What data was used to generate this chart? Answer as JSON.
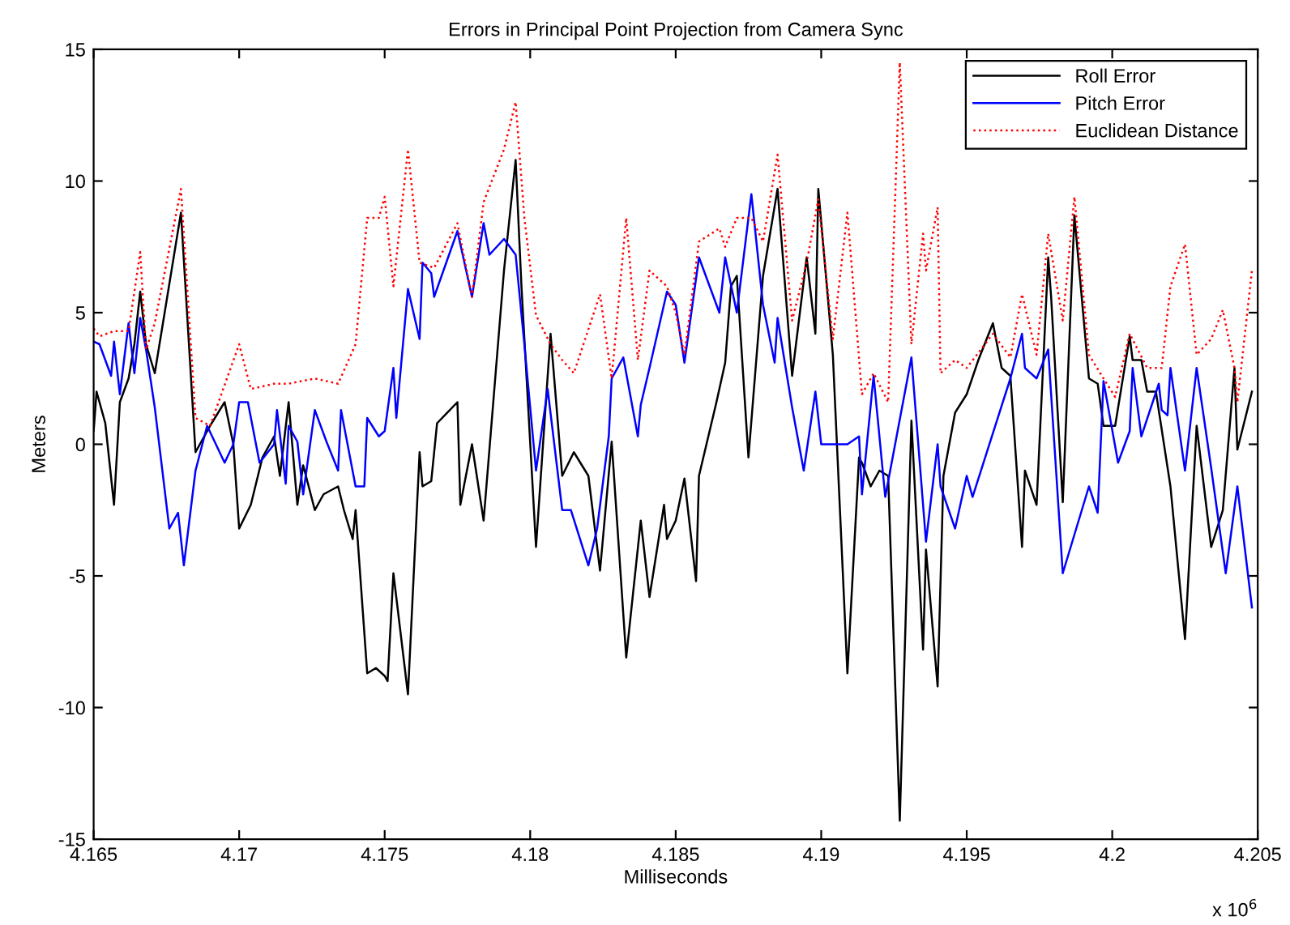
{
  "chart_data": {
    "type": "line",
    "title": "Errors in Principal Point Projection from Camera Sync",
    "xlabel": "Milliseconds",
    "ylabel": "Meters",
    "annotations": [
      "x 10$^{6}$"
    ],
    "xlim": [
      4.165,
      4.205
    ],
    "xticks": [
      4.165,
      4.17,
      4.175,
      4.18,
      4.185,
      4.19,
      4.195,
      4.2,
      4.205
    ],
    "ylim": [
      -15,
      15
    ],
    "yticks": [
      -15,
      -10,
      -5,
      0,
      5,
      10,
      15
    ],
    "grid": false,
    "legend": "top right",
    "marker": "none",
    "series": [
      {
        "name": "Roll Error",
        "color": "#000000",
        "line_style": "solid",
        "x": [
          4.165,
          4.1651,
          4.1654,
          4.1657,
          4.1659,
          4.1662,
          4.1664,
          4.1666,
          4.1668,
          4.1671,
          4.168,
          4.1685,
          4.169,
          4.1695,
          4.1698,
          4.17,
          4.1704,
          4.1708,
          4.1712,
          4.1714,
          4.1717,
          4.172,
          4.1722,
          4.1726,
          4.1729,
          4.1734,
          4.1736,
          4.1739,
          4.174,
          4.1744,
          4.1747,
          4.175,
          4.1751,
          4.1753,
          4.1758,
          4.1762,
          4.1763,
          4.1766,
          4.1768,
          4.1775,
          4.1776,
          4.178,
          4.1784,
          4.1791,
          4.1795,
          4.1797,
          4.1802,
          4.1807,
          4.1811,
          4.1815,
          4.182,
          4.1824,
          4.1828,
          4.1833,
          4.1838,
          4.1841,
          4.1846,
          4.1847,
          4.185,
          4.1853,
          4.1857,
          4.1858,
          4.1864,
          4.1867,
          4.1869,
          4.1871,
          4.1875,
          4.188,
          4.1885,
          4.189,
          4.1895,
          4.1898,
          4.1899,
          4.1904,
          4.1909,
          4.1913,
          4.1914,
          4.1917,
          4.192,
          4.1923,
          4.1927,
          4.1931,
          4.1935,
          4.1936,
          4.194,
          4.1942,
          4.1946,
          4.195,
          4.1954,
          4.1959,
          4.1962,
          4.1965,
          4.1969,
          4.197,
          4.1974,
          4.1978,
          4.1979,
          4.1983,
          4.1987,
          4.1992,
          4.1995,
          4.1997,
          4.2001,
          4.2006,
          4.2007,
          4.201,
          4.2012,
          4.2015,
          4.202,
          4.2025,
          4.2029,
          4.2034,
          4.2038,
          4.2042,
          4.2043,
          4.2048
        ],
        "values": [
          0.5,
          2.0,
          0.8,
          -2.3,
          1.6,
          2.5,
          3.8,
          5.8,
          3.8,
          2.7,
          8.8,
          -0.3,
          0.7,
          1.6,
          0,
          -3.2,
          -2.3,
          -0.5,
          0.3,
          -1.2,
          1.6,
          -2.3,
          -0.8,
          -2.5,
          -1.9,
          -1.6,
          -2.5,
          -3.6,
          -2.5,
          -8.7,
          -8.5,
          -8.8,
          -9.0,
          -4.9,
          -9.5,
          -0.3,
          -1.6,
          -1.4,
          0.8,
          1.6,
          -2.3,
          0,
          -2.9,
          6.6,
          10.8,
          6.0,
          -3.9,
          4.2,
          -1.2,
          -0.3,
          -1.2,
          -4.8,
          0.1,
          -8.1,
          -2.9,
          -5.8,
          -2.3,
          -3.6,
          -2.9,
          -1.3,
          -5.2,
          -1.2,
          1.6,
          3.1,
          6.0,
          6.4,
          -0.5,
          6.4,
          9.7,
          2.6,
          7.1,
          4.2,
          9.7,
          3.4,
          -8.7,
          -0.5,
          -0.7,
          -1.6,
          -1.0,
          -1.2,
          -14.3,
          0.9,
          -7.8,
          -4.0,
          -9.2,
          -1.2,
          1.2,
          1.9,
          3.2,
          4.6,
          2.9,
          2.6,
          -3.9,
          -1.0,
          -2.3,
          7.1,
          5.6,
          -2.2,
          8.7,
          2.5,
          2.3,
          0.7,
          0.7,
          4.1,
          3.2,
          3.2,
          2.0,
          2.0,
          -1.6,
          -7.4,
          0.7,
          -3.9,
          -2.5,
          2.9,
          -0.2,
          2.0
        ]
      },
      {
        "name": "Pitch Error",
        "color": "#0000ff",
        "line_style": "solid",
        "x": [
          4.165,
          4.1652,
          4.1656,
          4.1657,
          4.1659,
          4.1662,
          4.1664,
          4.1666,
          4.1668,
          4.1671,
          4.1676,
          4.1679,
          4.1681,
          4.1685,
          4.1689,
          4.1695,
          4.1698,
          4.17,
          4.1703,
          4.1707,
          4.1712,
          4.1713,
          4.1716,
          4.1717,
          4.172,
          4.1722,
          4.1726,
          4.173,
          4.1734,
          4.1735,
          4.174,
          4.1743,
          4.1744,
          4.1748,
          4.175,
          4.1753,
          4.1754,
          4.1758,
          4.1762,
          4.1763,
          4.1766,
          4.1767,
          4.1775,
          4.178,
          4.1784,
          4.1786,
          4.1791,
          4.1795,
          4.1798,
          4.1802,
          4.1806,
          4.1811,
          4.1814,
          4.182,
          4.1823,
          4.1827,
          4.1828,
          4.1832,
          4.1837,
          4.1838,
          4.1841,
          4.1847,
          4.185,
          4.1853,
          4.1858,
          4.1865,
          4.1867,
          4.1871,
          4.1876,
          4.188,
          4.1884,
          4.1885,
          4.189,
          4.1894,
          4.1898,
          4.19,
          4.1909,
          4.1913,
          4.1914,
          4.1918,
          4.1922,
          4.1931,
          4.1936,
          4.194,
          4.1941,
          4.1946,
          4.195,
          4.1952,
          4.1965,
          4.1969,
          4.197,
          4.1974,
          4.1978,
          4.1983,
          4.1992,
          4.1995,
          4.1997,
          4.2002,
          4.2006,
          4.2007,
          4.201,
          4.2016,
          4.2017,
          4.2019,
          4.202,
          4.2025,
          4.2029,
          4.2034,
          4.2039,
          4.2043,
          4.2048
        ],
        "values": [
          3.9,
          3.8,
          2.6,
          3.9,
          1.9,
          4.6,
          2.7,
          4.8,
          3.6,
          1.4,
          -3.2,
          -2.6,
          -4.6,
          -1.0,
          0.7,
          -0.7,
          0,
          1.6,
          1.6,
          -0.7,
          0,
          1.3,
          -1.5,
          0.7,
          0.1,
          -1.9,
          1.3,
          0.1,
          -1.0,
          1.3,
          -1.6,
          -1.6,
          1.0,
          0.3,
          0.5,
          2.9,
          1.0,
          5.9,
          4.0,
          6.9,
          6.5,
          5.6,
          8.1,
          5.6,
          8.4,
          7.2,
          7.8,
          7.2,
          3.8,
          -1.0,
          2.1,
          -2.5,
          -2.5,
          -4.6,
          -3.2,
          0.3,
          2.5,
          3.3,
          0.3,
          1.5,
          2.9,
          5.8,
          5.3,
          3.1,
          7.1,
          5.0,
          7.1,
          5.0,
          9.5,
          5.3,
          3.1,
          4.8,
          1.4,
          -1.0,
          2.0,
          0,
          0,
          0.3,
          -1.9,
          2.6,
          -2.0,
          3.3,
          -3.7,
          0,
          -1.6,
          -3.2,
          -1.2,
          -2.0,
          2.5,
          4.2,
          2.9,
          2.5,
          3.6,
          -4.9,
          -1.6,
          -2.6,
          2.4,
          -0.7,
          0.5,
          2.9,
          0.3,
          2.3,
          1.3,
          1.1,
          2.9,
          -1.0,
          2.9,
          -0.9,
          -4.9,
          -1.6,
          -6.2
        ]
      },
      {
        "name": "Euclidean Distance",
        "color": "#ff0000",
        "line_style": "dotted",
        "x": [
          4.165,
          4.1652,
          4.1657,
          4.1662,
          4.1666,
          4.1668,
          4.1671,
          4.168,
          4.1685,
          4.169,
          4.17,
          4.1704,
          4.1712,
          4.1717,
          4.1726,
          4.1734,
          4.174,
          4.1744,
          4.1748,
          4.175,
          4.1753,
          4.1758,
          4.1762,
          4.1767,
          4.1775,
          4.178,
          4.1784,
          4.1791,
          4.1795,
          4.1798,
          4.1802,
          4.1807,
          4.1811,
          4.1815,
          4.1824,
          4.1828,
          4.1833,
          4.1837,
          4.1841,
          4.1847,
          4.185,
          4.1853,
          4.1858,
          4.1865,
          4.1867,
          4.1871,
          4.1876,
          4.188,
          4.1885,
          4.189,
          4.1895,
          4.1899,
          4.1904,
          4.1909,
          4.1914,
          4.1918,
          4.1923,
          4.1927,
          4.1931,
          4.1935,
          4.1936,
          4.194,
          4.1941,
          4.1946,
          4.195,
          4.1959,
          4.1965,
          4.1969,
          4.1974,
          4.1978,
          4.1983,
          4.1987,
          4.1992,
          4.1997,
          4.2001,
          4.2006,
          4.2012,
          4.2017,
          4.202,
          4.2025,
          4.2029,
          4.2034,
          4.2038,
          4.2042,
          4.2043,
          4.2048
        ],
        "values": [
          4.4,
          4.1,
          4.3,
          4.3,
          7.3,
          3.6,
          4.6,
          9.7,
          1.0,
          0.7,
          3.8,
          2.1,
          2.3,
          2.3,
          2.5,
          2.3,
          3.8,
          8.6,
          8.6,
          9.4,
          6.0,
          11.2,
          6.9,
          6.7,
          8.4,
          5.6,
          9.2,
          11.2,
          13.0,
          8.6,
          4.9,
          3.8,
          3.2,
          2.7,
          5.7,
          2.5,
          8.6,
          3.2,
          6.6,
          6.0,
          5.0,
          3.4,
          7.7,
          8.2,
          7.5,
          8.6,
          8.6,
          7.7,
          11.0,
          4.7,
          6.9,
          9.3,
          4.0,
          8.8,
          1.9,
          2.7,
          1.6,
          14.5,
          3.8,
          8.0,
          6.6,
          9.0,
          2.7,
          3.2,
          2.9,
          4.2,
          3.3,
          5.7,
          3.4,
          8.0,
          4.7,
          9.4,
          3.4,
          2.5,
          1.8,
          4.2,
          2.9,
          2.9,
          6.0,
          7.6,
          3.4,
          4.0,
          5.1,
          2.9,
          1.6,
          6.6
        ]
      }
    ]
  }
}
